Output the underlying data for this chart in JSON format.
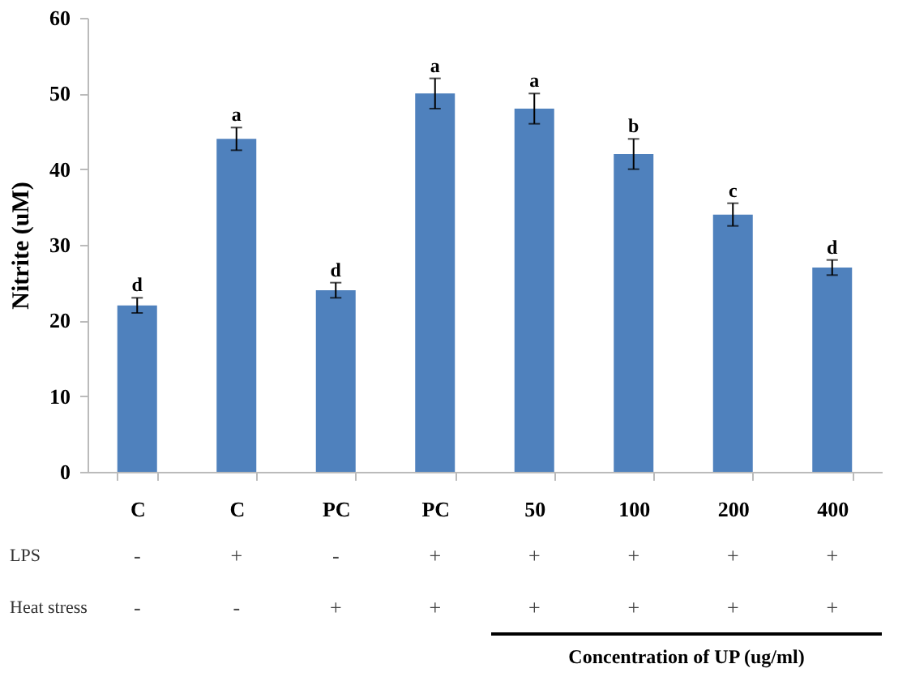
{
  "chart_data": {
    "type": "bar",
    "ylabel": "Nitrite (uM)",
    "categories": [
      "C",
      "C",
      "PC",
      "PC",
      "50",
      "100",
      "200",
      "400"
    ],
    "values": [
      22,
      44,
      24,
      50,
      48,
      42,
      34,
      27
    ],
    "errors": [
      1,
      1.5,
      1,
      2,
      2,
      2,
      1.5,
      1
    ],
    "value_labels": [
      "d",
      "a",
      "d",
      "a",
      "a",
      "b",
      "c",
      "d"
    ],
    "color": "#4f81bd",
    "ylim": [
      0,
      60
    ],
    "yticks": [
      0,
      10,
      20,
      30,
      40,
      50,
      60
    ],
    "grid": false,
    "annotations": [
      "LPS",
      "-",
      "+",
      "-",
      "+",
      "+",
      "+",
      "+",
      "+",
      "Heat stress",
      "-",
      "-",
      "+",
      "+",
      "+",
      "+",
      "+",
      "+",
      "Concentration of UP (ug/ml)"
    ]
  }
}
